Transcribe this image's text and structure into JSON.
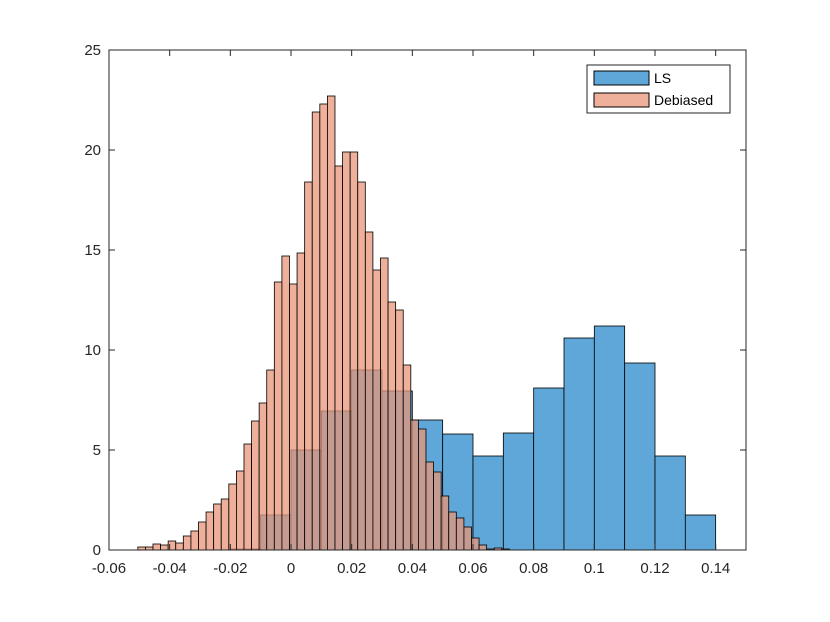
{
  "chart_data": {
    "type": "histogram",
    "xlim": [
      -0.06,
      0.15
    ],
    "ylim": [
      0,
      25
    ],
    "x_ticks": [
      -0.06,
      -0.04,
      -0.02,
      0,
      0.02,
      0.04,
      0.06,
      0.08,
      0.1,
      0.12,
      0.14
    ],
    "x_tick_labels": [
      "-0.06",
      "-0.04",
      "-0.02",
      "0",
      "0.02",
      "0.04",
      "0.06",
      "0.08",
      "0.1",
      "0.12",
      "0.14"
    ],
    "y_ticks": [
      0,
      5,
      10,
      15,
      20,
      25
    ],
    "y_tick_labels": [
      "0",
      "5",
      "10",
      "15",
      "20",
      "25"
    ],
    "grid": false,
    "legend_position": "top-right",
    "series": [
      {
        "name": "LS",
        "color": "#0072BD",
        "face_color": "#5ea7d8",
        "opacity": 1,
        "bin_edges": [
          -0.02,
          -0.01,
          0,
          0.01,
          0.02,
          0.03,
          0.04,
          0.05,
          0.06,
          0.07,
          0.08,
          0.09,
          0.1,
          0.11,
          0.12,
          0.13,
          0.14
        ],
        "values": [
          0.05,
          1.75,
          5.0,
          6.95,
          9.0,
          7.95,
          6.5,
          5.8,
          4.7,
          5.85,
          8.1,
          10.6,
          11.2,
          9.35,
          4.7,
          1.75,
          0.2
        ]
      },
      {
        "name": "Debiased",
        "color": "#D95319",
        "face_color": "#e8957a",
        "opacity": 0.75,
        "bin_edges": [
          -0.0505,
          -0.048,
          -0.0455,
          -0.043,
          -0.0405,
          -0.038,
          -0.0355,
          -0.033,
          -0.0305,
          -0.028,
          -0.0255,
          -0.023,
          -0.0205,
          -0.018,
          -0.0155,
          -0.013,
          -0.0105,
          -0.008,
          -0.0055,
          -0.003,
          -0.0005,
          0.002,
          0.0045,
          0.007,
          0.0095,
          0.012,
          0.0145,
          0.017,
          0.0195,
          0.022,
          0.0245,
          0.027,
          0.0295,
          0.032,
          0.0345,
          0.037,
          0.0395,
          0.042,
          0.0445,
          0.047,
          0.0495,
          0.052,
          0.0545,
          0.057,
          0.0595,
          0.062,
          0.0645,
          0.067,
          0.0695,
          0.072
        ],
        "values": [
          0.15,
          0.15,
          0.3,
          0.25,
          0.45,
          0.35,
          0.7,
          0.95,
          1.4,
          1.9,
          2.3,
          2.55,
          3.3,
          3.95,
          5.3,
          6.45,
          7.35,
          9.0,
          13.4,
          14.7,
          13.3,
          14.85,
          18.4,
          21.9,
          22.3,
          22.7,
          19.2,
          19.9,
          19.9,
          18.4,
          15.9,
          14.0,
          14.6,
          12.4,
          12.0,
          9.25,
          6.5,
          6.05,
          4.4,
          3.9,
          2.7,
          1.9,
          1.6,
          1.15,
          0.6,
          0.25,
          0.05,
          0.1,
          0.05
        ]
      }
    ]
  }
}
